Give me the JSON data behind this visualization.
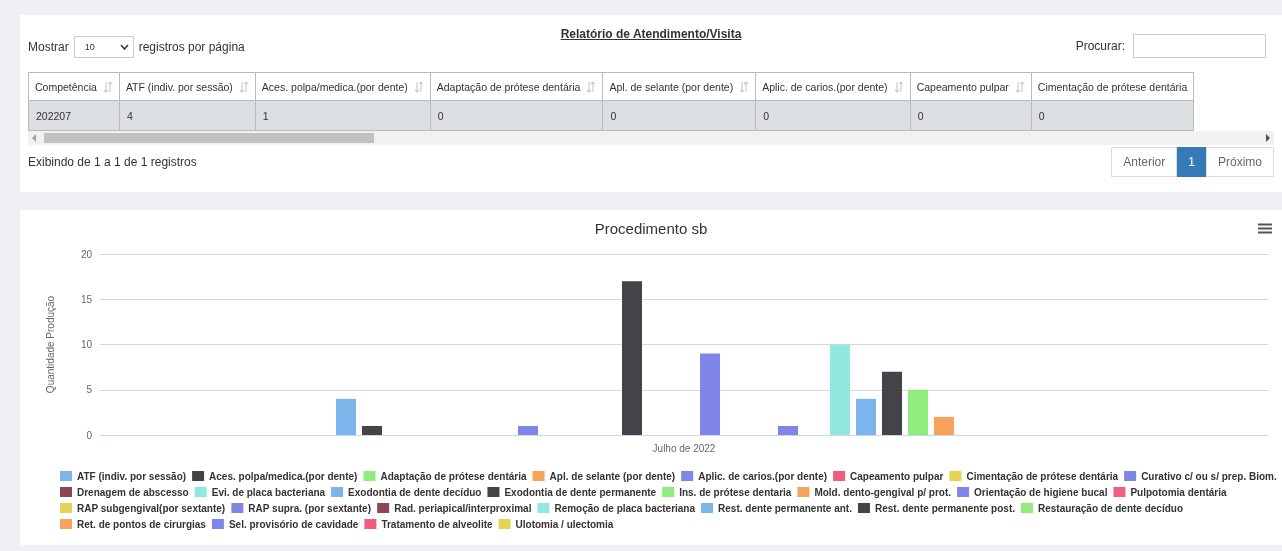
{
  "chart_data": [
    {
      "type": "other",
      "title": "Relatório de Atendimento/Visita",
      "categories": [
        "Competência",
        "ATF (indiv. por sessão)",
        "Aces. polpa/medica.(por dente)",
        "Adaptação de prótese dentária",
        "Apl. de selante (por dente)",
        "Aplic. de carios.(por dente)",
        "Capeamento pulpar",
        "Cimentação de prótese dentária"
      ],
      "values": [
        202207,
        4,
        1,
        0,
        0,
        0,
        0,
        0
      ],
      "data_labels": true,
      "annotations": [
        "Mostrar",
        "10",
        "registros por página",
        "Procurar:",
        "Exibindo de 1 a 1 de 1 registros",
        "Anterior",
        "1",
        "Próximo"
      ]
    },
    {
      "type": "bar",
      "title": "Procedimento sb",
      "ylabel": "Quantidade Produção",
      "categories": [
        "Julho de 2022"
      ],
      "ylim": [
        0,
        20
      ],
      "yticks": [
        0,
        5,
        10,
        15,
        20
      ],
      "grid": "y",
      "legend": "bottom",
      "series": [
        {
          "name": "ATF (indiv. por sessão)",
          "color": "#7cb5ec",
          "values": [
            4
          ]
        },
        {
          "name": "Aces. polpa/medica.(por dente)",
          "color": "#434348",
          "values": [
            1
          ]
        },
        {
          "name": "Adaptação de prótese dentária",
          "color": "#90ed7d",
          "values": [
            0
          ]
        },
        {
          "name": "Apl. de selante (por dente)",
          "color": "#f7a35c",
          "values": [
            0
          ]
        },
        {
          "name": "Aplic. de carios.(por dente)",
          "color": "#8085e9",
          "values": [
            0
          ]
        },
        {
          "name": "Capeamento pulpar",
          "color": "#f15c80",
          "values": [
            0
          ]
        },
        {
          "name": "Cimentação de prótese dentária",
          "color": "#e4d354",
          "values": [
            0
          ]
        },
        {
          "name": "Curativo c/ ou s/ prep. Biom.",
          "color": "#8085e8",
          "values": [
            1
          ]
        },
        {
          "name": "Drenagem de abscesso",
          "color": "#8d4653",
          "values": [
            0
          ]
        },
        {
          "name": "Evi. de placa bacteriana",
          "color": "#91e8e1",
          "values": [
            0
          ]
        },
        {
          "name": "Exodontia de dente decíduo",
          "color": "#7cb5ec",
          "values": [
            0
          ]
        },
        {
          "name": "Exodontia de dente permanente",
          "color": "#434348",
          "values": [
            17
          ]
        },
        {
          "name": "Ins. de prótese dentaria",
          "color": "#90ed7d",
          "values": [
            0
          ]
        },
        {
          "name": "Mold. dento-gengival p/ prot.",
          "color": "#f7a35c",
          "values": [
            0
          ]
        },
        {
          "name": "Orientação de higiene bucal",
          "color": "#8085e9",
          "values": [
            9
          ]
        },
        {
          "name": "Pulpotomia dentária",
          "color": "#f15c80",
          "values": [
            0
          ]
        },
        {
          "name": "RAP subgengival(por sextante)",
          "color": "#e4d354",
          "values": [
            0
          ]
        },
        {
          "name": "RAP supra. (por sextante)",
          "color": "#8085e8",
          "values": [
            1
          ]
        },
        {
          "name": "Rad. periapical/interproximal",
          "color": "#8d4653",
          "values": [
            0
          ]
        },
        {
          "name": "Remoção de placa bacteriana",
          "color": "#91e8e1",
          "values": [
            10
          ]
        },
        {
          "name": "Rest. dente permanente ant.",
          "color": "#7cb5ec",
          "values": [
            4
          ]
        },
        {
          "name": "Rest. dente permanente post.",
          "color": "#434348",
          "values": [
            7
          ]
        },
        {
          "name": "Restauração de dente decíduo",
          "color": "#90ed7d",
          "values": [
            5
          ]
        },
        {
          "name": "Ret. de pontos de cirurgias",
          "color": "#f7a35c",
          "values": [
            2
          ]
        },
        {
          "name": "Sel. provisório de cavidade",
          "color": "#8085e9",
          "values": [
            0
          ]
        },
        {
          "name": "Tratamento de alveolite",
          "color": "#f15c80",
          "values": [
            0
          ]
        },
        {
          "name": "Ulotomia / ulectomia",
          "color": "#e4d354",
          "values": [
            0
          ]
        }
      ]
    }
  ]
}
